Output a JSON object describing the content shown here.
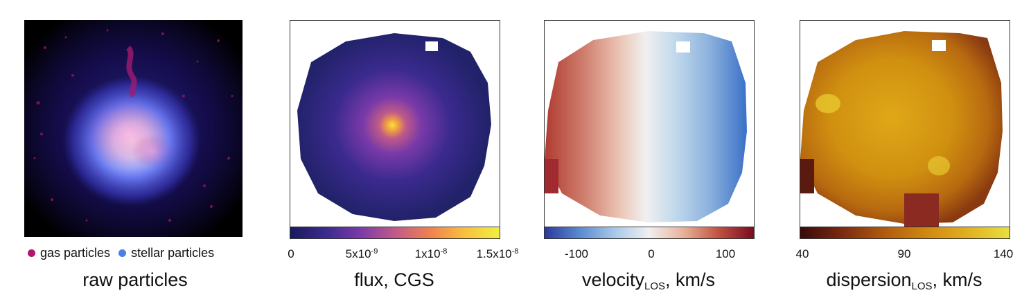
{
  "panels": {
    "raw": {
      "caption": "raw particles",
      "legend": [
        {
          "label": "gas particles",
          "color": "#b0166e"
        },
        {
          "label": "stellar particles",
          "color": "#4a7fe8"
        }
      ]
    },
    "flux": {
      "caption_main": "flux, CGS",
      "ticks": [
        "0",
        "5x10",
        "1x10",
        "1.5x10"
      ],
      "tick_exp": [
        "",
        "-9",
        "-8",
        "-8"
      ],
      "colormap": [
        "#1a1a5e",
        "#3a2a8e",
        "#7a3aa8",
        "#c05a8a",
        "#f08050",
        "#f8c040",
        "#f0f040"
      ]
    },
    "velocity": {
      "caption_main": "velocity",
      "caption_sub": "LOS",
      "caption_tail": ", km/s",
      "ticks": [
        "-100",
        "0",
        "100"
      ],
      "colormap": [
        "#2a3a9a",
        "#5a8ad0",
        "#a8c8e8",
        "#f0f0f0",
        "#e8b098",
        "#c05040",
        "#7a0a20"
      ]
    },
    "dispersion": {
      "caption_main": "dispersion",
      "caption_sub": "LOS",
      "caption_tail": ", km/s",
      "ticks": [
        "40",
        "90",
        "140"
      ],
      "colormap": [
        "#3a0a0a",
        "#7a2a10",
        "#b05a10",
        "#d08810",
        "#e0b020",
        "#e8e040"
      ]
    }
  }
}
